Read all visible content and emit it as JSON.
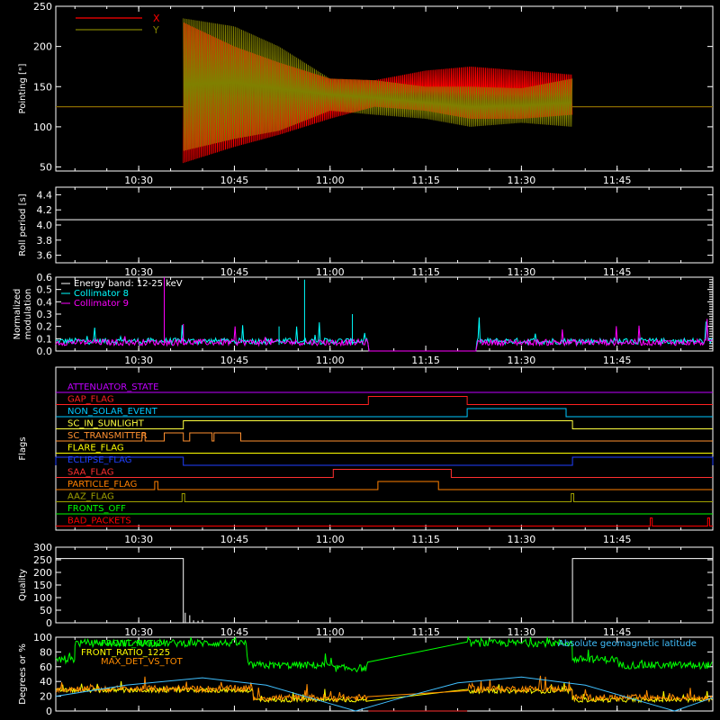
{
  "time_axis": {
    "ticks": [
      "10:30",
      "10:45",
      "11:00",
      "11:15",
      "11:30",
      "11:45"
    ],
    "tick_minutes": [
      630,
      645,
      660,
      675,
      690,
      705
    ],
    "range_minutes": [
      617,
      720
    ]
  },
  "chart_data": [
    {
      "id": "pointing",
      "type": "line",
      "ylabel": "Pointing [\"]",
      "ylim": [
        45,
        250
      ],
      "yticks": [
        50,
        100,
        150,
        200,
        250
      ],
      "legend": "top-left",
      "series": [
        {
          "name": "X",
          "color": "#ff0000",
          "envelope": [
            [
              637,
              55,
              230
            ],
            [
              645,
              75,
              200
            ],
            [
              652,
              90,
              180
            ],
            [
              660,
              110,
              160
            ],
            [
              667,
              125,
              158
            ],
            [
              675,
              120,
              170
            ],
            [
              682,
              110,
              175
            ],
            [
              690,
              110,
              170
            ],
            [
              698,
              115,
              165
            ]
          ],
          "baseline": 125
        },
        {
          "name": "Y",
          "color": "#808000",
          "envelope": [
            [
              637,
              70,
              235
            ],
            [
              645,
              85,
              225
            ],
            [
              652,
              95,
              200
            ],
            [
              660,
              120,
              160
            ],
            [
              667,
              115,
              158
            ],
            [
              675,
              110,
              150
            ],
            [
              682,
              100,
              150
            ],
            [
              690,
              105,
              148
            ],
            [
              698,
              100,
              160
            ]
          ],
          "baseline": 125
        }
      ]
    },
    {
      "id": "roll",
      "type": "line",
      "ylabel": "Roll period [s]",
      "ylim": [
        3.5,
        4.5
      ],
      "yticks": [
        3.6,
        3.8,
        4.0,
        4.2,
        4.4
      ],
      "series": [
        {
          "name": "",
          "color": "#ffffff",
          "level": 4.07
        }
      ]
    },
    {
      "id": "modulation",
      "type": "line",
      "ylabel": [
        "Normalized",
        "modulation"
      ],
      "ylim": [
        0,
        0.6
      ],
      "yticks": [
        0.0,
        0.1,
        0.2,
        0.3,
        0.4,
        0.5,
        0.6
      ],
      "legend": "top-left",
      "legend_entries": [
        "Energy band: 12-25 keV",
        "Collimator 8",
        "Collimator 9"
      ],
      "gaps": [
        [
          666,
          683
        ]
      ],
      "series": [
        {
          "name": "Collimator 8",
          "color": "#00ffff",
          "level": 0.08
        },
        {
          "name": "Collimator 9",
          "color": "#ff00ff",
          "level": 0.07
        }
      ]
    },
    {
      "id": "flags",
      "type": "line",
      "ylabel": "Flags",
      "flags": [
        {
          "label": "ATTENUATOR_STATE",
          "color": "#c000ff",
          "segments": []
        },
        {
          "label": "GAP_FLAG",
          "color": "#ff2020",
          "segments": [
            [
              666,
              681.5
            ]
          ]
        },
        {
          "label": "NON_SOLAR_EVENT",
          "color": "#00c8ff",
          "segments": [
            [
              681.5,
              697
            ]
          ]
        },
        {
          "label": "SC_IN_SUNLIGHT",
          "color": "#ffff40",
          "segments": [
            [
              637,
              698
            ]
          ]
        },
        {
          "label": "SC_TRANSMITTER",
          "color": "#ff9030",
          "segments": [
            [
              630.5,
              631
            ],
            [
              634,
              637
            ],
            [
              638,
              641.5
            ],
            [
              641.8,
              646
            ]
          ]
        },
        {
          "label": "FLARE_FLAG",
          "color": "#ffff00",
          "segments": []
        },
        {
          "label": "ECLIPSE_FLAG",
          "color": "#2040ff",
          "segments": [
            [
              617,
              637
            ],
            [
              698,
              720
            ]
          ]
        },
        {
          "label": "SAA_FLAG",
          "color": "#ff3030",
          "segments": [
            [
              660.5,
              679
            ]
          ]
        },
        {
          "label": "PARTICLE_FLAG",
          "color": "#ff8000",
          "segments": [
            [
              632.5,
              633
            ],
            [
              667.5,
              677
            ]
          ]
        },
        {
          "label": "AAZ_FLAG",
          "color": "#a0a000",
          "segments": [
            [
              636.8,
              637.2
            ],
            [
              697.8,
              698.2
            ]
          ]
        },
        {
          "label": "FRONTS_OFF",
          "color": "#00ff00",
          "segments": []
        },
        {
          "label": "BAD_PACKETS",
          "color": "#ff0000",
          "segments": [
            [
              710.2,
              710.5
            ],
            [
              719.2,
              719.5
            ]
          ]
        }
      ]
    },
    {
      "id": "quality",
      "type": "line",
      "ylabel": "Quality",
      "ylim": [
        0,
        300
      ],
      "yticks": [
        0,
        50,
        100,
        150,
        200,
        250,
        300
      ],
      "series": [
        {
          "name": "",
          "color": "#ffffff",
          "segments": [
            [
              617,
              637,
              255
            ],
            [
              637,
              698,
              0
            ],
            [
              698,
              720,
              255
            ]
          ]
        }
      ]
    },
    {
      "id": "degrees",
      "type": "line",
      "ylabel": "Degrees or %",
      "ylim": [
        0,
        100
      ],
      "yticks": [
        0,
        20,
        40,
        60,
        80,
        100
      ],
      "legend": "top",
      "legend_entries": [
        "FRONT_RATIO",
        "FRONT_RATIO_1225",
        "MAX_DET_VS_TOT",
        "Absolute geomagnetic latitude"
      ],
      "series": [
        {
          "name": "FRONT_RATIO",
          "color": "#00ff00",
          "steps": [
            [
              617,
              620,
              70
            ],
            [
              620,
              647,
              92
            ],
            [
              647,
              660,
              62
            ],
            [
              660,
              666,
              58
            ],
            [
              681.5,
              698,
              92
            ],
            [
              698,
              705,
              70
            ],
            [
              705,
              720,
              62
            ]
          ]
        },
        {
          "name": "FRONT_RATIO_1225",
          "color": "#ffff00",
          "steps": [
            [
              617,
              648,
              28
            ],
            [
              648,
              666,
              15
            ],
            [
              681.5,
              698,
              27
            ],
            [
              698,
              720,
              15
            ]
          ]
        },
        {
          "name": "MAX_DET_VS_TOT",
          "color": "#ff8c00",
          "steps": [
            [
              617,
              648,
              30
            ],
            [
              648,
              666,
              18
            ],
            [
              681.5,
              698,
              30
            ],
            [
              698,
              720,
              18
            ]
          ]
        },
        {
          "name": "Absolute geomagnetic latitude",
          "color": "#40c0ff",
          "points": [
            [
              617,
              20
            ],
            [
              628,
              35
            ],
            [
              640,
              45
            ],
            [
              650,
              35
            ],
            [
              660,
              10
            ],
            [
              664,
              0
            ],
            [
              670,
              15
            ],
            [
              680,
              38
            ],
            [
              690,
              46
            ],
            [
              700,
              35
            ],
            [
              710,
              10
            ],
            [
              714,
              0
            ],
            [
              720,
              18
            ]
          ]
        }
      ]
    }
  ]
}
